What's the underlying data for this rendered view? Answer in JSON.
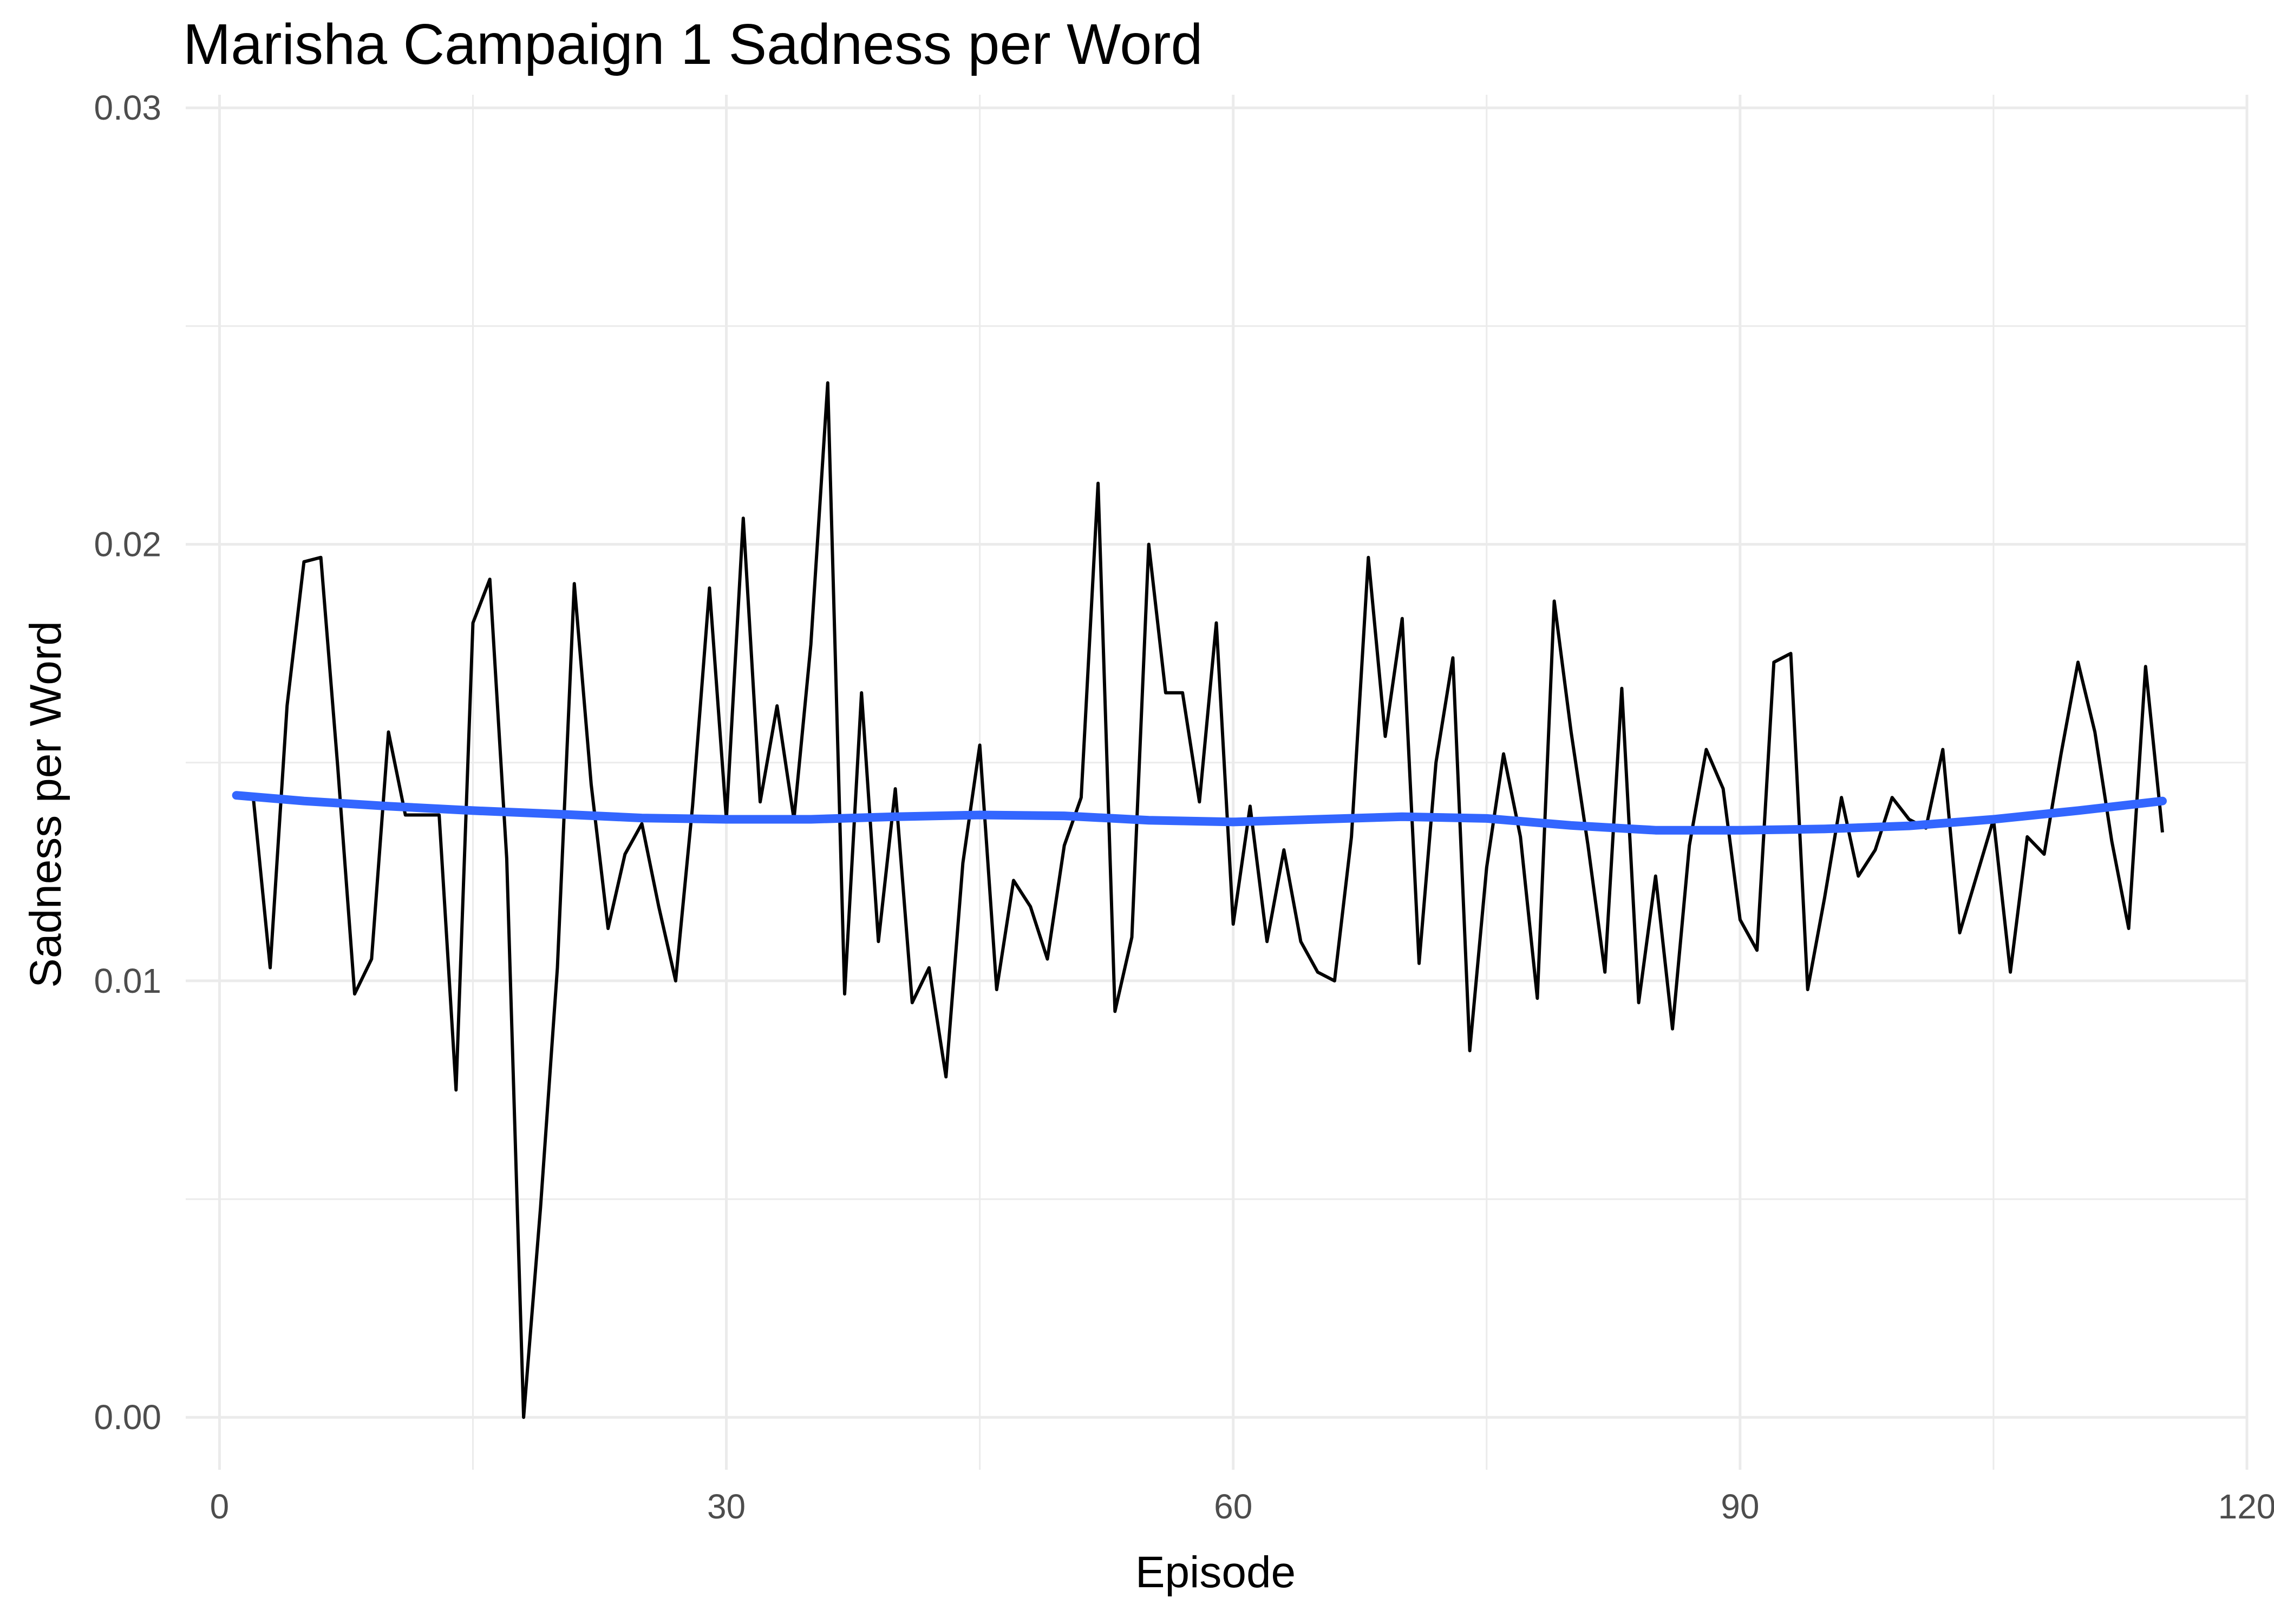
{
  "chart_data": {
    "type": "line",
    "title": "Marisha Campaign 1 Sadness per Word",
    "xlabel": "Episode",
    "ylabel": "Sadness per Word",
    "xlim": [
      -2,
      120
    ],
    "ylim": [
      -0.0012,
      0.0303
    ],
    "x_ticks": [
      0,
      30,
      60,
      90,
      120
    ],
    "y_ticks": [
      0.0,
      0.01,
      0.02,
      0.03
    ],
    "x_tick_labels": [
      "0",
      "30",
      "60",
      "90",
      "120"
    ],
    "y_tick_labels": [
      "0.00",
      "0.01",
      "0.02",
      "0.03"
    ],
    "grid": true,
    "series": [
      {
        "kind": "raw",
        "color": "#000000",
        "x": [
          2,
          3,
          4,
          5,
          6,
          7,
          8,
          9,
          10,
          11,
          12,
          13,
          14,
          15,
          16,
          17,
          18,
          19,
          20,
          21,
          22,
          23,
          24,
          25,
          26,
          27,
          28,
          29,
          30,
          31,
          32,
          33,
          34,
          35,
          36,
          37,
          38,
          39,
          40,
          41,
          42,
          43,
          44,
          45,
          46,
          47,
          48,
          49,
          50,
          51,
          52,
          53,
          54,
          55,
          56,
          57,
          58,
          59,
          60,
          61,
          62,
          63,
          64,
          65,
          66,
          67,
          68,
          69,
          70,
          71,
          72,
          73,
          74,
          75,
          76,
          77,
          78,
          79,
          80,
          81,
          82,
          83,
          84,
          85,
          86,
          87,
          88,
          89,
          90,
          91,
          92,
          93,
          94,
          95,
          96,
          97,
          98,
          99,
          100,
          101,
          102,
          103,
          104,
          105,
          106,
          107,
          108,
          109,
          110,
          111,
          112,
          113,
          114,
          115
        ],
        "y": [
          0.0142,
          0.0103,
          0.0163,
          0.0196,
          0.0197,
          0.0149,
          0.0097,
          0.0105,
          0.0157,
          0.0138,
          0.0138,
          0.0138,
          0.0075,
          0.0182,
          0.0192,
          0.0128,
          0.0,
          0.0048,
          0.0103,
          0.0191,
          0.0145,
          0.0112,
          0.0129,
          0.0136,
          0.0117,
          0.01,
          0.014,
          0.019,
          0.0137,
          0.0206,
          0.0141,
          0.0163,
          0.0137,
          0.0177,
          0.0237,
          0.0097,
          0.0166,
          0.0109,
          0.0144,
          0.0095,
          0.0103,
          0.0078,
          0.0127,
          0.0154,
          0.0098,
          0.0123,
          0.0117,
          0.0105,
          0.0131,
          0.0142,
          0.0214,
          0.0093,
          0.011,
          0.02,
          0.0166,
          0.0166,
          0.0141,
          0.0182,
          0.0113,
          0.014,
          0.0109,
          0.013,
          0.0109,
          0.0102,
          0.01,
          0.0133,
          0.0197,
          0.0156,
          0.0183,
          0.0104,
          0.015,
          0.0174,
          0.0084,
          0.0126,
          0.0152,
          0.0133,
          0.0096,
          0.0187,
          0.0157,
          0.0131,
          0.0102,
          0.0167,
          0.0095,
          0.0124,
          0.0089,
          0.0131,
          0.0153,
          0.0144,
          0.0114,
          0.0107,
          0.0173,
          0.0175,
          0.0098,
          0.0119,
          0.0142,
          0.0124,
          0.013,
          0.0142,
          0.0137,
          0.0135,
          0.0153,
          0.0111,
          0.0124,
          0.0137,
          0.0102,
          0.0133,
          0.0129,
          0.0152,
          0.0173,
          0.0157,
          0.0132,
          0.0112,
          0.0172,
          0.0134
        ]
      },
      {
        "kind": "smooth",
        "color": "#3366ff",
        "x": [
          1,
          5,
          10,
          15,
          20,
          25,
          30,
          35,
          40,
          45,
          50,
          55,
          60,
          65,
          70,
          75,
          80,
          85,
          90,
          95,
          100,
          105,
          110,
          115
        ],
        "y": [
          0.01425,
          0.01412,
          0.014,
          0.0139,
          0.01382,
          0.01373,
          0.0137,
          0.0137,
          0.01376,
          0.0138,
          0.01378,
          0.01368,
          0.01364,
          0.0137,
          0.01376,
          0.01372,
          0.01356,
          0.01345,
          0.01345,
          0.01348,
          0.01355,
          0.0137,
          0.0139,
          0.01412
        ]
      }
    ]
  }
}
